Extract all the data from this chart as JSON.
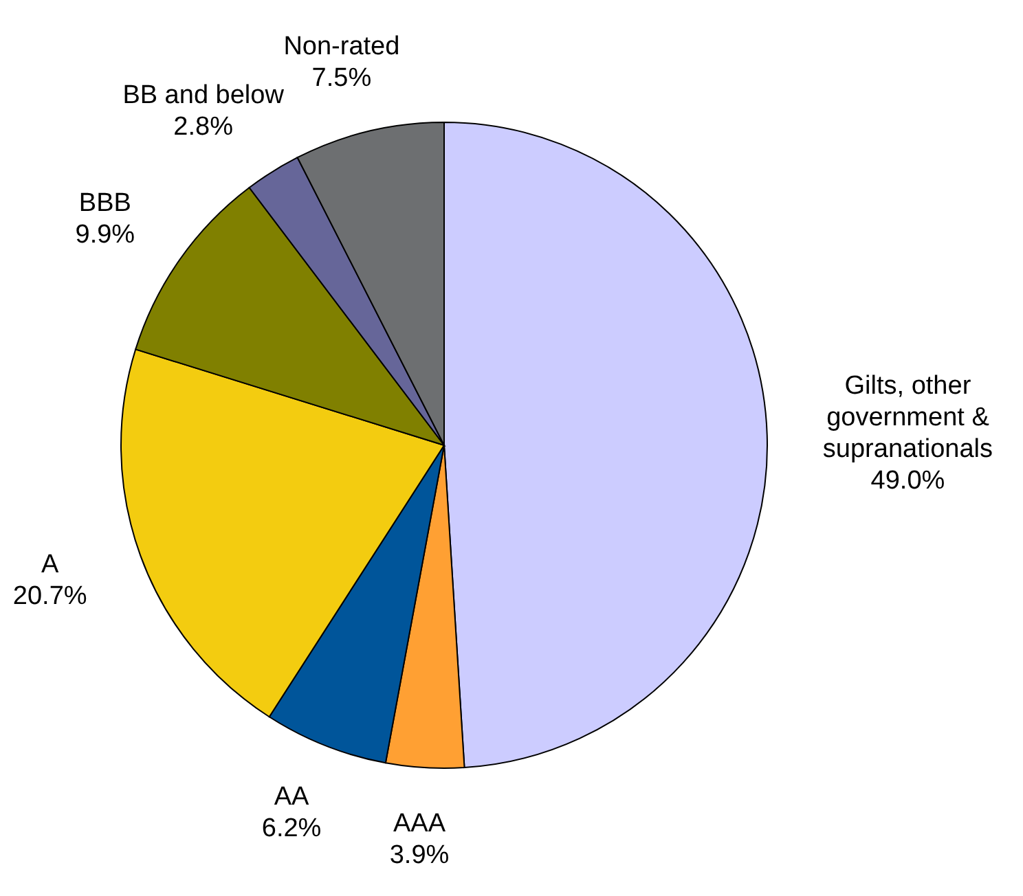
{
  "chart_data": {
    "type": "pie",
    "categories": [
      "Gilts, other government & supranationals",
      "AAA",
      "AA",
      "A",
      "BBB",
      "BB and below",
      "Non-rated"
    ],
    "values": [
      49.0,
      3.9,
      6.2,
      20.7,
      9.9,
      2.8,
      7.5
    ],
    "value_labels": [
      "49.0%",
      "3.9%",
      "6.2%",
      "20.7%",
      "9.9%",
      "2.8%",
      "7.5%"
    ],
    "colors": [
      "#ccccff",
      "#ffa033",
      "#00559a",
      "#f3cc10",
      "#808000",
      "#666699",
      "#6d6f71"
    ],
    "legend": false
  }
}
